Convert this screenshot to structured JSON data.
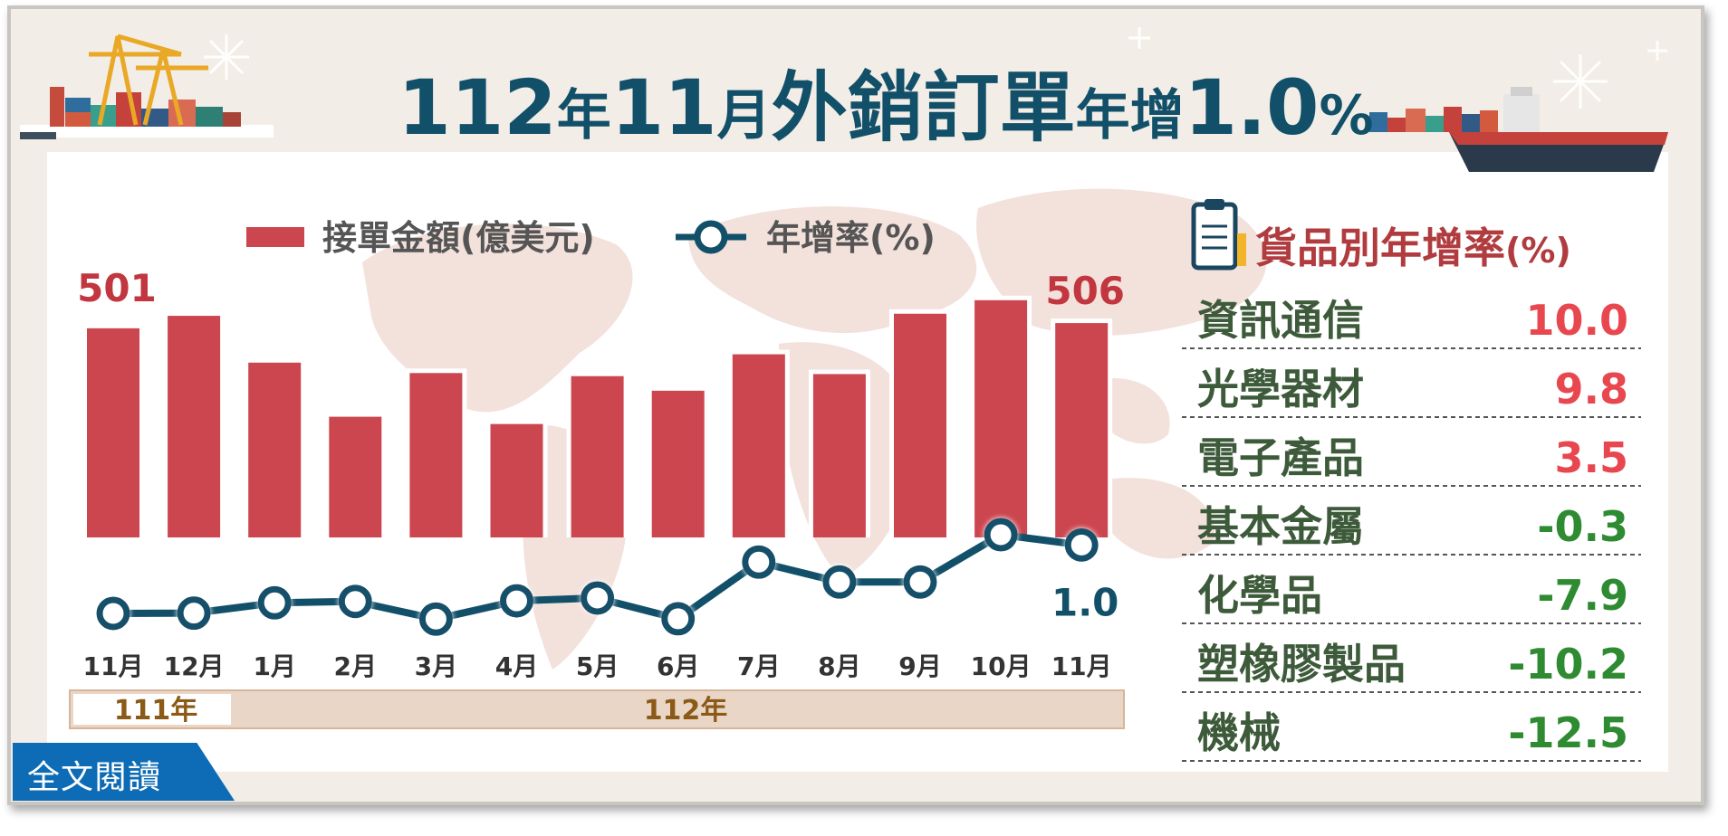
{
  "header": {
    "title_parts": [
      "112",
      "年",
      "11",
      "月",
      "外銷訂單",
      "年增",
      "1.0",
      "%"
    ]
  },
  "colors": {
    "bar": "#cc4650",
    "line": "#125069",
    "title": "#125069",
    "positive": "#e8474f",
    "negative": "#2e8b32",
    "category_text": "#3d5a3a",
    "panel_bg": "#f2ede6",
    "year_band": "#ead6c7",
    "year_text": "#8a5a16",
    "cta_bg": "#0d6cb5"
  },
  "chart_data": {
    "type": "bar",
    "legend": [
      "接單金額(億美元)",
      "年增率(%)"
    ],
    "categories": [
      "11月",
      "12月",
      "1月",
      "2月",
      "3月",
      "4月",
      "5月",
      "6月",
      "7月",
      "8月",
      "9月",
      "10月",
      "11月"
    ],
    "series": [
      {
        "name": "接單金額(億美元)",
        "type": "bar",
        "values": [
          501,
          513,
          468,
          416,
          458,
          409,
          455,
          441,
          476,
          457,
          515,
          528,
          506
        ]
      },
      {
        "name": "年增率(%)",
        "type": "line",
        "values": [
          -23.0,
          -22.9,
          -19.3,
          -18.8,
          -25.0,
          -18.6,
          -17.6,
          -24.9,
          -5.0,
          -12.0,
          -12.0,
          4.6,
          1.0
        ]
      }
    ],
    "data_labels": {
      "first": "501",
      "last_bar": "506",
      "last_line": "1.0"
    },
    "year_bands": [
      {
        "label": "111年",
        "from": 0,
        "to": 1
      },
      {
        "label": "112年",
        "from": 1,
        "to": 13
      }
    ],
    "bar_ylim": [
      300,
      540
    ],
    "line_ylim": [
      -30,
      10
    ],
    "grid": false,
    "legend_position": "top"
  },
  "category_panel": {
    "title": "貨品別年增率",
    "unit": "(%)",
    "rows": [
      {
        "name": "資訊通信",
        "value": "10.0"
      },
      {
        "name": "光學器材",
        "value": "9.8"
      },
      {
        "name": "電子產品",
        "value": "3.5"
      },
      {
        "name": "基本金屬",
        "value": "-0.3"
      },
      {
        "name": "化學品",
        "value": "-7.9"
      },
      {
        "name": "塑橡膠製品",
        "value": "-10.2"
      },
      {
        "name": "機械",
        "value": "-12.5"
      }
    ]
  },
  "cta": {
    "label": "全文閱讀"
  }
}
